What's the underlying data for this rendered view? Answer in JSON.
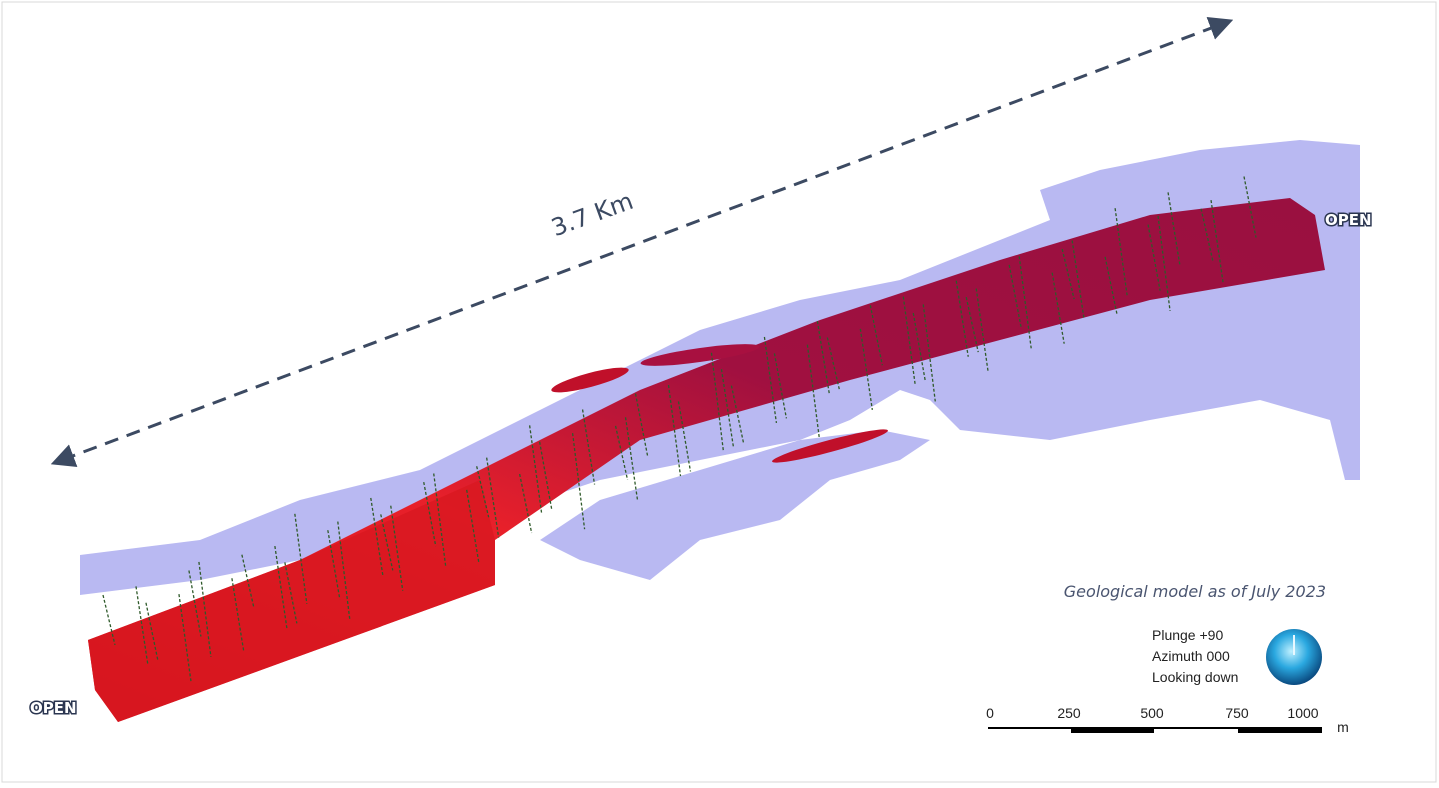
{
  "annotations": {
    "distance": "3.7 Km",
    "open_left": "OPEN",
    "open_right": "OPEN",
    "caption": "Geological model as of July 2023"
  },
  "orientation": [
    "Plunge +90",
    "Azimuth 000",
    "Looking down"
  ],
  "scale_bar": {
    "labels": [
      "0",
      "250",
      "500",
      "750",
      "1000"
    ],
    "unit": "m"
  }
}
